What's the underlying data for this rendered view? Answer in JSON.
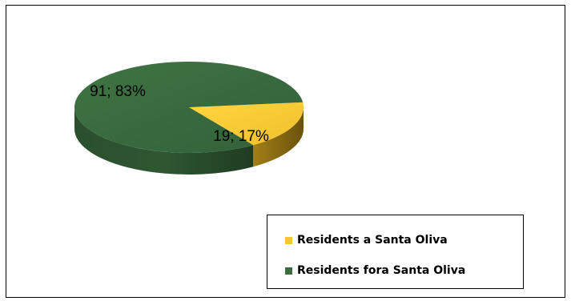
{
  "chart_data": {
    "type": "pie",
    "style": "3d",
    "slices": [
      {
        "name": "Residents a Santa Oliva",
        "value": 19,
        "percent": 17,
        "label": "19; 17%",
        "color": "#F5C733"
      },
      {
        "name": "Residents fora Santa Oliva",
        "value": 91,
        "percent": 83,
        "label": "91; 83%",
        "color": "#3B6B3E"
      }
    ],
    "legend_position": "bottom-right",
    "title": ""
  },
  "legend": {
    "items": [
      {
        "label": "Residents a Santa Oliva",
        "color": "#F5C733"
      },
      {
        "label": "Residents fora Santa Oliva",
        "color": "#3B6B3E"
      }
    ]
  }
}
